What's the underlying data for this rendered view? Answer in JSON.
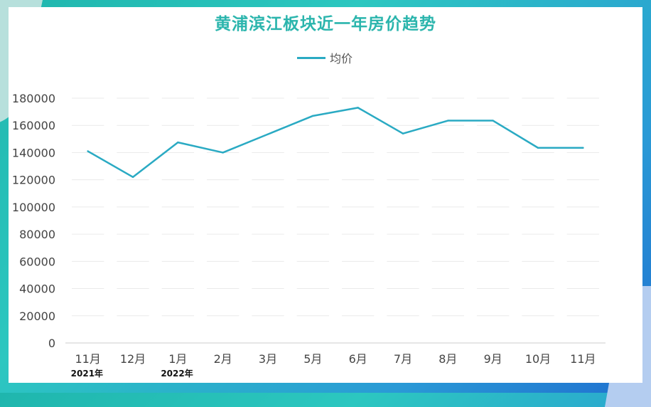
{
  "chart_data": {
    "type": "line",
    "title": "黄浦滨江板块近一年房价趋势",
    "categories": [
      "11月",
      "12月",
      "1月",
      "2月",
      "3月",
      "5月",
      "6月",
      "7月",
      "8月",
      "9月",
      "10月",
      "11月"
    ],
    "series": [
      {
        "name": "均价",
        "color": "#2aaac3",
        "values": [
          141000,
          122000,
          147500,
          140000,
          153500,
          167000,
          173000,
          154000,
          163500,
          163500,
          143500,
          143500
        ]
      }
    ],
    "yticks": [
      "0",
      "20000",
      "40000",
      "60000",
      "80000",
      "100000",
      "120000",
      "140000",
      "160000",
      "180000"
    ],
    "ylim": [
      0,
      180000
    ],
    "year_labels": [
      {
        "text": "2021年",
        "category_index": 0
      },
      {
        "text": "2022年",
        "category_index": 2
      }
    ],
    "xlabel": "",
    "ylabel": "",
    "grid": true,
    "legend_position": "top-center"
  }
}
